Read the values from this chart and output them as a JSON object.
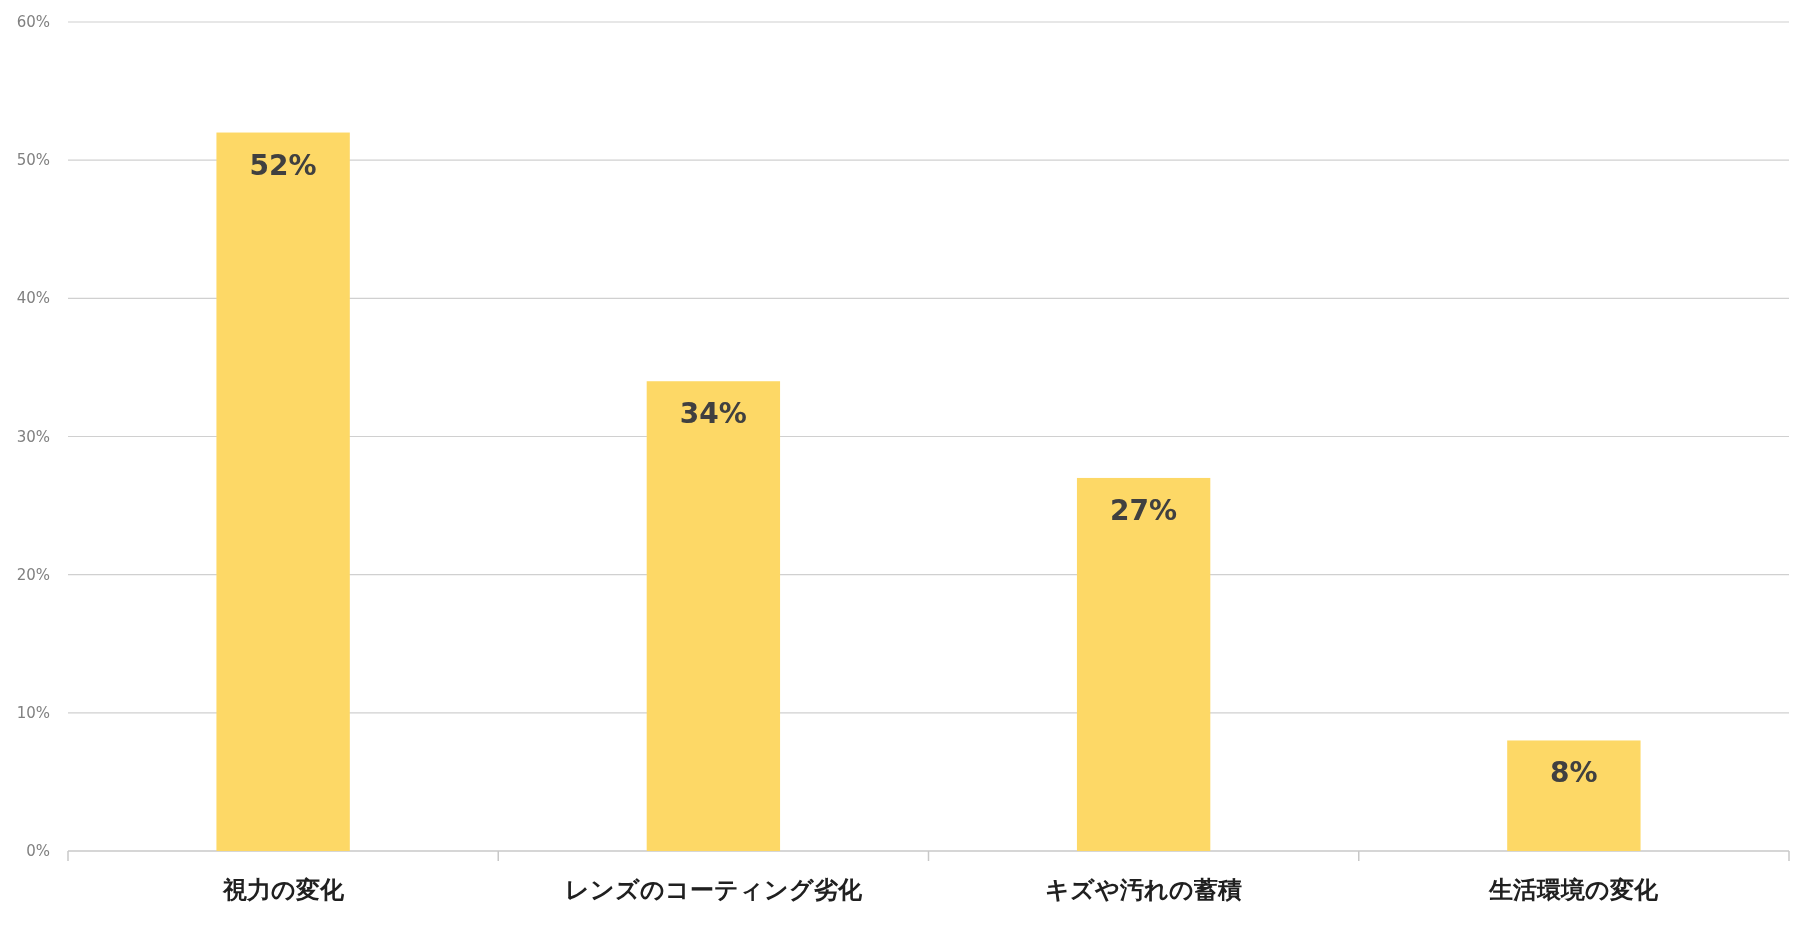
{
  "chart_data": {
    "type": "bar",
    "categories": [
      "視力の変化",
      "レンズのコーティング劣化",
      "キズや汚れの蓄積",
      "生活環境の変化"
    ],
    "values": [
      52,
      34,
      27,
      8
    ],
    "value_labels": [
      "52%",
      "34%",
      "27%",
      "8%"
    ],
    "color": "#fdd866",
    "ylim": [
      0,
      60
    ],
    "yticks": [
      {
        "value": 0,
        "label": "0%"
      },
      {
        "value": 10,
        "label": "10%"
      },
      {
        "value": 20,
        "label": "20%"
      },
      {
        "value": 30,
        "label": "30%"
      },
      {
        "value": 40,
        "label": "40%"
      },
      {
        "value": 50,
        "label": "50%"
      },
      {
        "value": 60,
        "label": "60%"
      }
    ],
    "grid": "y"
  }
}
